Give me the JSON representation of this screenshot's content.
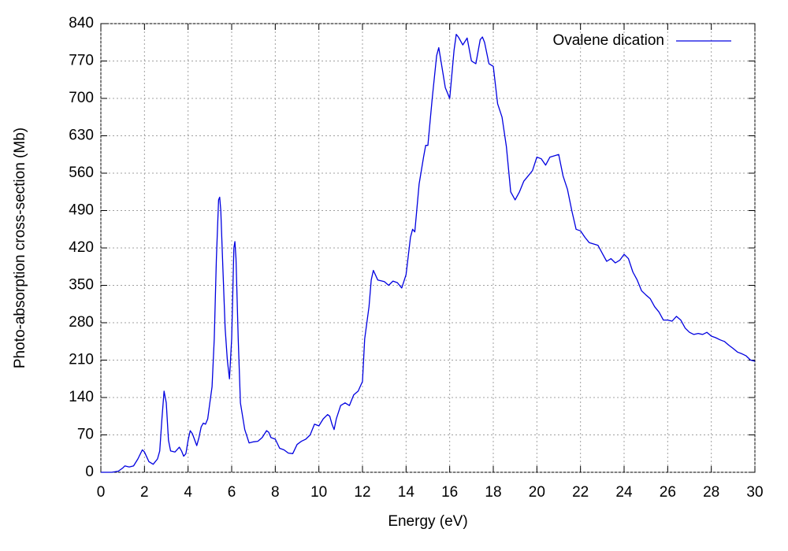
{
  "chart_data": {
    "type": "line",
    "xlabel": "Energy (eV)",
    "ylabel": "Photo-absorption cross-section (Mb)",
    "xlim": [
      0,
      30
    ],
    "ylim": [
      0,
      840
    ],
    "xticks": [
      0,
      2,
      4,
      6,
      8,
      10,
      12,
      14,
      16,
      18,
      20,
      22,
      24,
      26,
      28,
      30
    ],
    "yticks": [
      0,
      70,
      140,
      210,
      280,
      350,
      420,
      490,
      560,
      630,
      700,
      770,
      840
    ],
    "grid": true,
    "legend": "upper right",
    "x": [
      0,
      0.5,
      0.8,
      1.0,
      1.1,
      1.3,
      1.5,
      1.7,
      1.9,
      2.0,
      2.2,
      2.4,
      2.6,
      2.7,
      2.8,
      2.9,
      3.0,
      3.1,
      3.2,
      3.4,
      3.6,
      3.7,
      3.8,
      3.9,
      4.0,
      4.1,
      4.2,
      4.4,
      4.5,
      4.6,
      4.7,
      4.8,
      4.9,
      5.0,
      5.1,
      5.2,
      5.3,
      5.4,
      5.45,
      5.5,
      5.6,
      5.7,
      5.8,
      5.9,
      6.0,
      6.1,
      6.15,
      6.2,
      6.3,
      6.4,
      6.6,
      6.8,
      7.0,
      7.2,
      7.4,
      7.6,
      7.7,
      7.8,
      8.0,
      8.2,
      8.4,
      8.6,
      8.8,
      9.0,
      9.2,
      9.4,
      9.6,
      9.8,
      10.0,
      10.2,
      10.4,
      10.5,
      10.6,
      10.7,
      10.8,
      11.0,
      11.2,
      11.4,
      11.6,
      11.8,
      12.0,
      12.1,
      12.3,
      12.4,
      12.5,
      12.7,
      13.0,
      13.2,
      13.4,
      13.6,
      13.8,
      14.0,
      14.2,
      14.3,
      14.4,
      14.6,
      14.8,
      14.9,
      15.0,
      15.2,
      15.4,
      15.5,
      15.6,
      15.8,
      16.0,
      16.2,
      16.3,
      16.4,
      16.6,
      16.8,
      17.0,
      17.2,
      17.4,
      17.5,
      17.6,
      17.8,
      18.0,
      18.2,
      18.4,
      18.6,
      18.8,
      19.0,
      19.2,
      19.4,
      19.6,
      19.8,
      20.0,
      20.2,
      20.4,
      20.6,
      21.0,
      21.2,
      21.4,
      21.6,
      21.8,
      22.0,
      22.2,
      22.4,
      22.8,
      23.0,
      23.2,
      23.4,
      23.6,
      23.8,
      24.0,
      24.2,
      24.4,
      24.6,
      24.8,
      25.0,
      25.2,
      25.4,
      25.6,
      25.8,
      26.0,
      26.2,
      26.4,
      26.6,
      26.8,
      27.0,
      27.2,
      27.4,
      27.6,
      27.8,
      28.0,
      28.2,
      28.4,
      28.6,
      28.8,
      29.0,
      29.2,
      29.4,
      29.6,
      29.8,
      30.0
    ],
    "series": [
      {
        "name": "Ovalene dication",
        "color": "#0000e0",
        "values": [
          0,
          0,
          2,
          8,
          12,
          10,
          12,
          25,
          42,
          38,
          20,
          15,
          25,
          40,
          100,
          152,
          130,
          60,
          40,
          38,
          47,
          40,
          30,
          35,
          60,
          78,
          72,
          50,
          65,
          85,
          92,
          90,
          100,
          130,
          160,
          250,
          400,
          510,
          515,
          490,
          380,
          270,
          210,
          175,
          250,
          420,
          432,
          400,
          250,
          130,
          80,
          55,
          57,
          58,
          65,
          78,
          75,
          65,
          62,
          45,
          42,
          36,
          35,
          52,
          58,
          62,
          70,
          90,
          87,
          100,
          108,
          105,
          90,
          80,
          100,
          125,
          130,
          125,
          145,
          152,
          170,
          250,
          310,
          360,
          378,
          360,
          357,
          350,
          358,
          355,
          345,
          370,
          440,
          455,
          450,
          540,
          590,
          612,
          612,
          700,
          780,
          795,
          770,
          720,
          700,
          790,
          820,
          815,
          800,
          813,
          770,
          765,
          810,
          815,
          805,
          765,
          760,
          690,
          665,
          610,
          525,
          510,
          525,
          545,
          555,
          565,
          590,
          587,
          575,
          590,
          595,
          555,
          530,
          490,
          455,
          452,
          440,
          430,
          425,
          410,
          395,
          400,
          392,
          397,
          408,
          400,
          375,
          360,
          340,
          332,
          325,
          310,
          300,
          285,
          285,
          283,
          292,
          285,
          270,
          262,
          258,
          260,
          258,
          262,
          255,
          252,
          248,
          245,
          238,
          232,
          225,
          222,
          218,
          210,
          208
        ]
      }
    ]
  }
}
